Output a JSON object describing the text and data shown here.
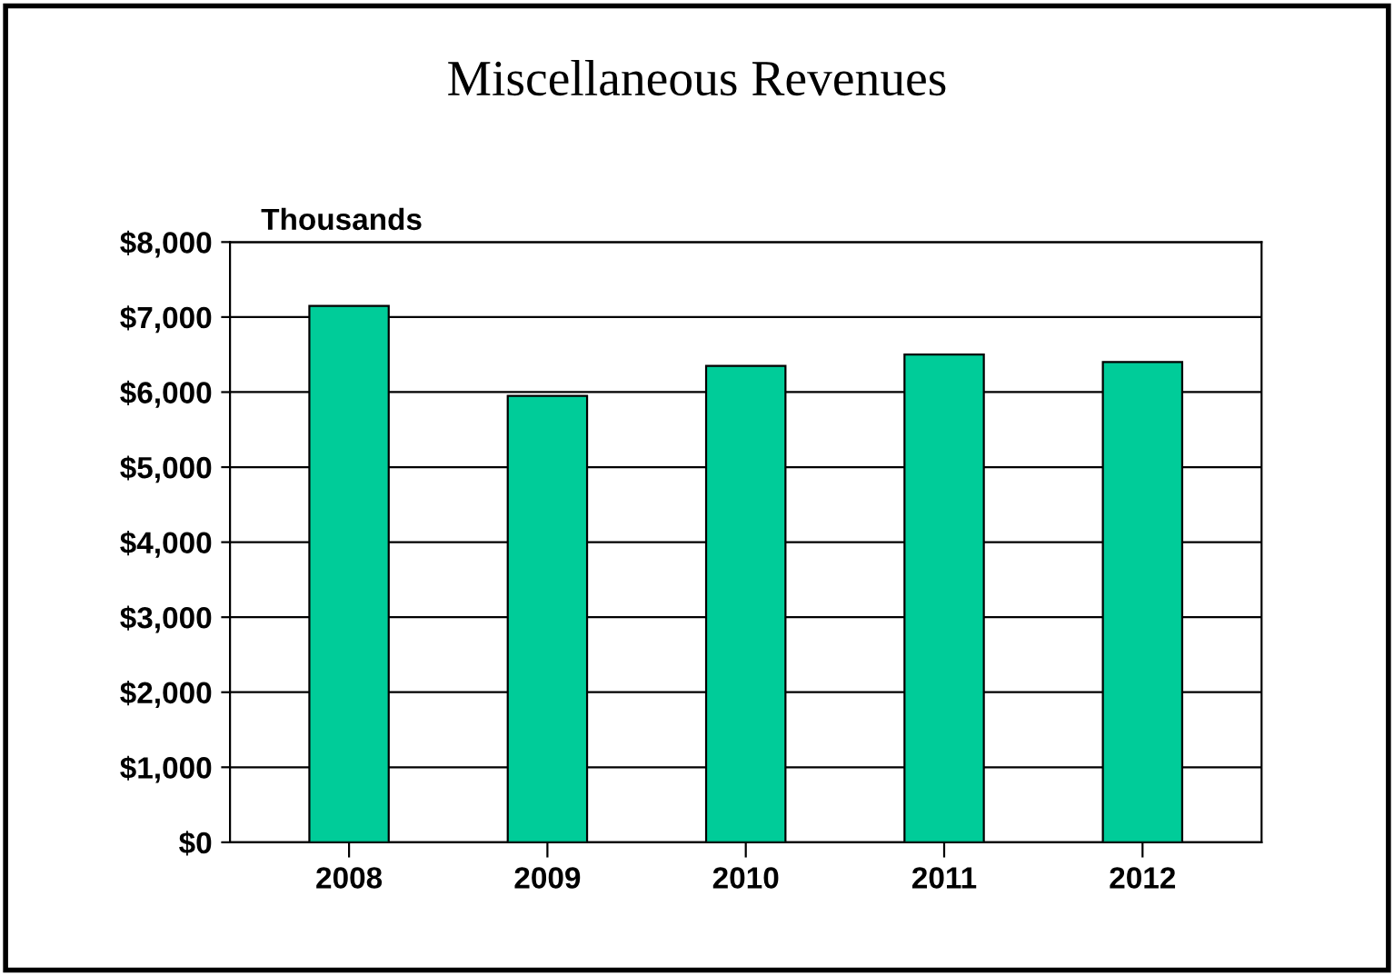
{
  "chart_data": {
    "type": "bar",
    "title": "Miscellaneous Revenues",
    "ylabel": "Thousands",
    "categories": [
      "2008",
      "2009",
      "2010",
      "2011",
      "2012"
    ],
    "values": [
      7150,
      5950,
      6350,
      6500,
      6400
    ],
    "color": "#00cc99",
    "ylim": [
      0,
      8000
    ],
    "yticks": [
      {
        "value": 0,
        "label": "$0"
      },
      {
        "value": 1000,
        "label": "$1,000"
      },
      {
        "value": 2000,
        "label": "$2,000"
      },
      {
        "value": 3000,
        "label": "$3,000"
      },
      {
        "value": 4000,
        "label": "$4,000"
      },
      {
        "value": 5000,
        "label": "$5,000"
      },
      {
        "value": 6000,
        "label": "$6,000"
      },
      {
        "value": 7000,
        "label": "$7,000"
      },
      {
        "value": 8000,
        "label": "$8,000"
      }
    ],
    "grid": "y",
    "legend": false
  }
}
